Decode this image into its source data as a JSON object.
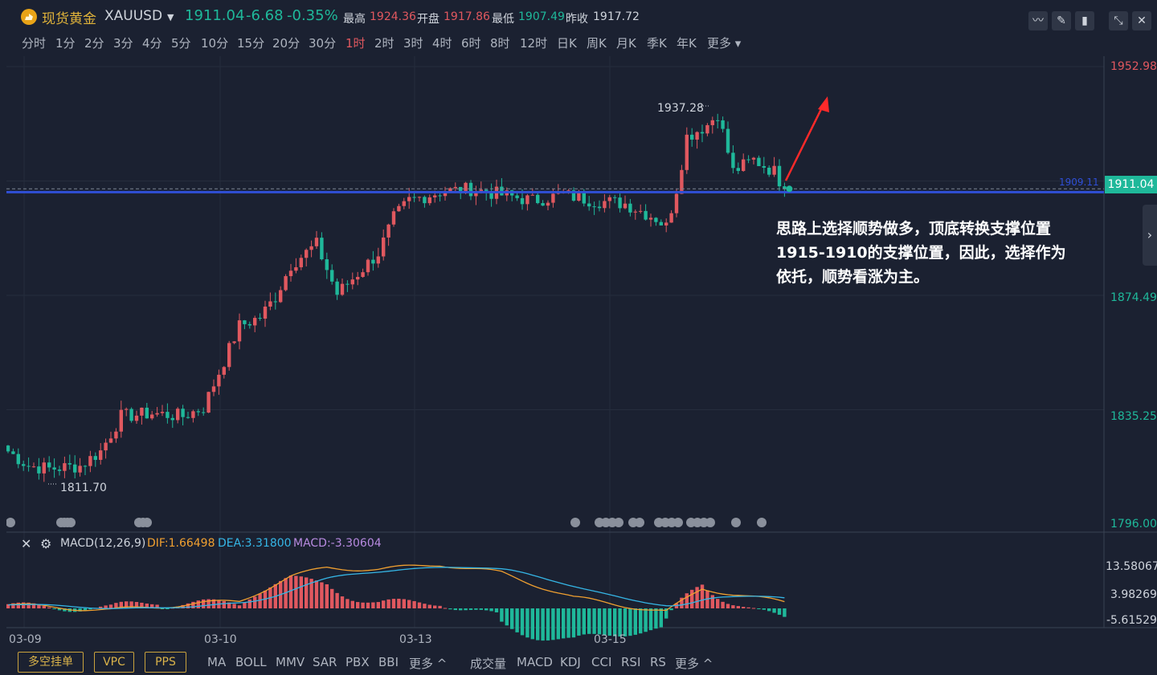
{
  "header": {
    "name": "现货黄金",
    "symbol": "XAUUSD",
    "price": "1911.04",
    "change": "-6.68",
    "change_pct": "-0.35%",
    "quotes": [
      {
        "label": "最高",
        "value": "1924.36",
        "color": "red"
      },
      {
        "label": "开盘",
        "value": "1917.86",
        "color": "red"
      },
      {
        "label": "最低",
        "value": "1907.49",
        "color": "green"
      },
      {
        "label": "昨收",
        "value": "1917.72",
        "color": "white"
      }
    ],
    "tools": [
      "draw-line-icon",
      "pen-icon",
      "candle-icon",
      "collapse-icon",
      "close-icon"
    ]
  },
  "intervals": [
    "分时",
    "1分",
    "2分",
    "3分",
    "4分",
    "5分",
    "10分",
    "15分",
    "20分",
    "30分",
    "1时",
    "2时",
    "3时",
    "4时",
    "6时",
    "8时",
    "12时",
    "日K",
    "周K",
    "月K",
    "季K",
    "年K",
    "更多"
  ],
  "active_interval": "1时",
  "price_axis": {
    "ticks": [
      "1952.98",
      "1874.49",
      "1835.25",
      "1796.00"
    ],
    "current": "1911.04",
    "line_label": "1909.11"
  },
  "labels": {
    "high": "1937.28",
    "low": "1811.70"
  },
  "annotation": [
    "思路上选择顺势做多，顶底转换支撑位置",
    "1915-1910的支撑位置，因此，选择作为",
    "依托，顺势看涨为主。"
  ],
  "macd": {
    "title": "MACD(12,26,9)",
    "dif": "DIF:1.66498",
    "dea": "DEA:3.31800",
    "macd": "MACD:-3.30604",
    "ticks": [
      "13.58067",
      "3.98269",
      "-5.61529"
    ]
  },
  "dates": [
    "03-09",
    "03-10",
    "03-13",
    "03-15"
  ],
  "bottom": {
    "buttons": [
      "多空挂单",
      "VPC",
      "PPS"
    ],
    "indicators_main": [
      "MA",
      "BOLL",
      "MMV",
      "SAR",
      "PBX",
      "BBI",
      "更多"
    ],
    "indicators_sub": [
      "成交量",
      "MACD",
      "KDJ",
      "CCI",
      "RSI",
      "RS",
      "更多"
    ]
  },
  "colors": {
    "up": "#e0585f",
    "down": "#1fb89a",
    "bg": "#1b2131",
    "support_line": "#2f4fd6",
    "arrow": "#ff2a2a"
  },
  "chart_data": {
    "type": "candlestick",
    "price_range": [
      1796.0,
      1952.98
    ],
    "keypoints": [
      [
        0,
        1821
      ],
      [
        4,
        1816
      ],
      [
        8,
        1815
      ],
      [
        14,
        1816
      ],
      [
        18,
        1821
      ],
      [
        22,
        1833
      ],
      [
        28,
        1834
      ],
      [
        34,
        1833
      ],
      [
        38,
        1836
      ],
      [
        42,
        1852
      ],
      [
        45,
        1864
      ],
      [
        49,
        1867
      ],
      [
        52,
        1874
      ],
      [
        55,
        1885
      ],
      [
        60,
        1892
      ],
      [
        64,
        1875
      ],
      [
        68,
        1882
      ],
      [
        72,
        1889
      ],
      [
        75,
        1901
      ],
      [
        78,
        1907
      ],
      [
        84,
        1910
      ],
      [
        90,
        1911
      ],
      [
        96,
        1909
      ],
      [
        102,
        1907
      ],
      [
        108,
        1909
      ],
      [
        114,
        1907
      ],
      [
        120,
        1906
      ],
      [
        126,
        1901
      ],
      [
        128,
        1898
      ],
      [
        130,
        1911
      ],
      [
        132,
        1929
      ],
      [
        136,
        1933
      ],
      [
        138,
        1937
      ],
      [
        141,
        1917
      ],
      [
        145,
        1921
      ],
      [
        149,
        1917
      ],
      [
        151,
        1911
      ]
    ],
    "macd_keypoints": [
      [
        0,
        1.0
      ],
      [
        20,
        -0.5
      ],
      [
        38,
        1.5
      ],
      [
        45,
        2.0
      ],
      [
        55,
        9.0
      ],
      [
        62,
        11.5
      ],
      [
        72,
        11.0
      ],
      [
        84,
        12.5
      ],
      [
        96,
        10.0
      ],
      [
        110,
        3.0
      ],
      [
        128,
        -1.0
      ],
      [
        135,
        5.5
      ],
      [
        142,
        4.0
      ],
      [
        151,
        1.6
      ]
    ]
  }
}
